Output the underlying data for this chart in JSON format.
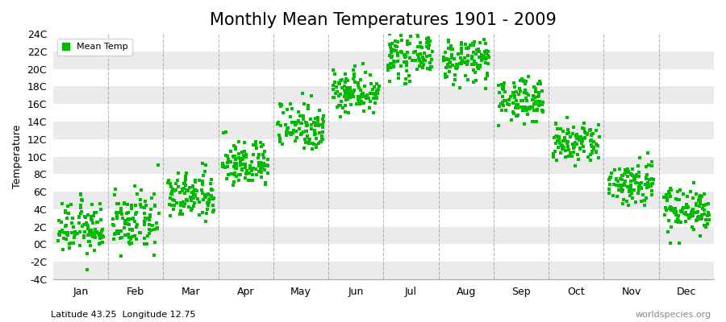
{
  "title": "Monthly Mean Temperatures 1901 - 2009",
  "ylabel": "Temperature",
  "background_color": "#ffffff",
  "plot_bg_color": "#ffffff",
  "dot_color": "#00bb00",
  "dot_size": 6,
  "marker": "s",
  "y_ticks": [
    -4,
    -2,
    0,
    2,
    4,
    6,
    8,
    10,
    12,
    14,
    16,
    18,
    20,
    22,
    24
  ],
  "y_labels": [
    "-4C",
    "-2C",
    "0C",
    "2C",
    "4C",
    "6C",
    "8C",
    "10C",
    "12C",
    "14C",
    "16C",
    "18C",
    "20C",
    "22C",
    "24C"
  ],
  "ylim": [
    -4,
    24
  ],
  "months": [
    "Jan",
    "Feb",
    "Mar",
    "Apr",
    "May",
    "Jun",
    "Jul",
    "Aug",
    "Sep",
    "Oct",
    "Nov",
    "Dec"
  ],
  "month_means": [
    1.8,
    2.5,
    5.5,
    9.2,
    13.5,
    17.5,
    21.5,
    21.0,
    16.5,
    11.5,
    7.0,
    4.0
  ],
  "month_stds": [
    1.5,
    1.6,
    1.4,
    1.3,
    1.4,
    1.3,
    1.2,
    1.2,
    1.2,
    1.2,
    1.3,
    1.3
  ],
  "n_years": 109,
  "footer_left": "Latitude 43.25  Longitude 12.75",
  "footer_right": "worldspecies.org",
  "legend_label": "Mean Temp",
  "title_fontsize": 15,
  "axis_fontsize": 9,
  "footer_fontsize": 8,
  "stripe_color": "#ebebeb",
  "dashed_color": "#888888"
}
